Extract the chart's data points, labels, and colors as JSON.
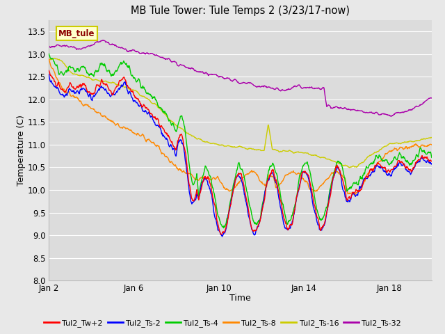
{
  "title": "MB Tule Tower: Tule Temps 2 (3/23/17-now)",
  "xlabel": "Time",
  "ylabel": "Temperature (C)",
  "ylim": [
    8.0,
    13.75
  ],
  "yticks": [
    8.0,
    8.5,
    9.0,
    9.5,
    10.0,
    10.5,
    11.0,
    11.5,
    12.0,
    12.5,
    13.0,
    13.5
  ],
  "bg_color": "#e8e8e8",
  "plot_bg_color": "#dcdcdc",
  "grid_color": "#ffffff",
  "annotation_label": "MB_tule",
  "annotation_color": "#8b0000",
  "annotation_bg": "#ffffcc",
  "annotation_border": "#cccc00",
  "lines": {
    "Tul2_Tw+2": {
      "color": "#ff0000",
      "lw": 1.0
    },
    "Tul2_Ts-2": {
      "color": "#0000ff",
      "lw": 1.0
    },
    "Tul2_Ts-4": {
      "color": "#00cc00",
      "lw": 1.0
    },
    "Tul2_Ts-8": {
      "color": "#ff8800",
      "lw": 1.0
    },
    "Tul2_Ts-16": {
      "color": "#cccc00",
      "lw": 1.0
    },
    "Tul2_Ts-32": {
      "color": "#aa00aa",
      "lw": 1.0
    }
  },
  "xtick_labels": [
    "Jan 2",
    "Jan 6",
    "Jan 10",
    "Jan 14",
    "Jan 18"
  ],
  "xtick_positions": [
    0,
    4,
    8,
    12,
    16
  ],
  "xlim": [
    0,
    18
  ]
}
